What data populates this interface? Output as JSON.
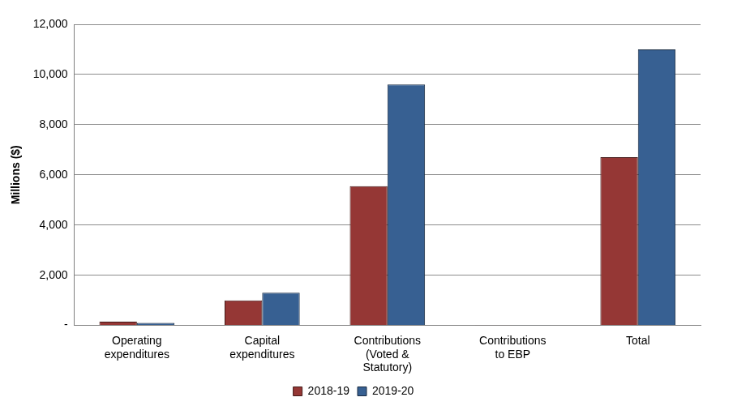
{
  "chart_data": {
    "type": "bar",
    "y_label": "Millions ($)",
    "categories": [
      "Operating expenditures",
      "Capital expenditures",
      "Contributions (Voted & Statutory)",
      "Contributions to EBP",
      "Total"
    ],
    "series": [
      {
        "name": "2018-19",
        "color": "#953735",
        "values": [
          150,
          1000,
          5550,
          15,
          6700
        ]
      },
      {
        "name": "2019-20",
        "color": "#376092",
        "values": [
          100,
          1300,
          9600,
          15,
          11000
        ]
      }
    ],
    "ylim": [
      0,
      12000
    ],
    "yticks": [
      {
        "value": 0,
        "label": "-"
      },
      {
        "value": 2000,
        "label": "2,000"
      },
      {
        "value": 4000,
        "label": "4,000"
      },
      {
        "value": 6000,
        "label": "6,000"
      },
      {
        "value": 8000,
        "label": "8,000"
      },
      {
        "value": 10000,
        "label": "10,000"
      },
      {
        "value": 12000,
        "label": "12,000"
      }
    ],
    "grid": true,
    "legend": "bottom"
  }
}
